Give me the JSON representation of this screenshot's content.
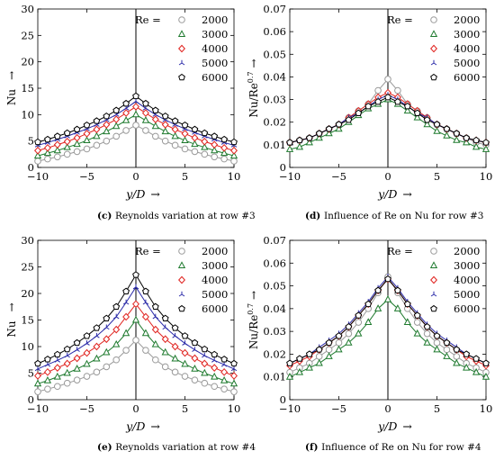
{
  "legend_header": "Re =",
  "series_styles": [
    {
      "name": "2000",
      "color": "#9a9a9a",
      "marker": "circle"
    },
    {
      "name": "3000",
      "color": "#1e7a2e",
      "marker": "triangle"
    },
    {
      "name": "4000",
      "color": "#e0231f",
      "marker": "diamond"
    },
    {
      "name": "5000",
      "color": "#2a2aa8",
      "marker": "star"
    },
    {
      "name": "6000",
      "color": "#000000",
      "marker": "pentagon"
    }
  ],
  "chart_data": [
    {
      "type": "line",
      "panel": "c",
      "caption_letter": "(c)",
      "caption": "Reynolds variation at row #3",
      "xlabel": "y/D",
      "ylabel": "Nu",
      "xlim": [
        -10,
        10
      ],
      "ylim": [
        0,
        30
      ],
      "xticks": [
        -10,
        -5,
        0,
        5,
        10
      ],
      "yticks": [
        0,
        5,
        10,
        15,
        20,
        25,
        30
      ],
      "legend_position": "top-right",
      "vline_x": 0,
      "peaks": [
        8,
        10,
        11.5,
        12.5,
        13.5
      ],
      "edges": [
        1.2,
        2.2,
        3.2,
        4.2,
        4.8
      ],
      "series": [
        {
          "name": "2000",
          "x": [
            -10,
            -9,
            -8,
            -7,
            -6,
            -5,
            -4,
            -3,
            -2,
            -1,
            0,
            1,
            2,
            3,
            4,
            5,
            6,
            7,
            8,
            9,
            10
          ],
          "y": [
            1.2,
            1.6,
            2.0,
            2.5,
            3.0,
            3.5,
            4.2,
            5.0,
            5.9,
            7.0,
            8.0,
            7.0,
            5.9,
            5.0,
            4.2,
            3.5,
            3.0,
            2.5,
            2.0,
            1.6,
            1.2
          ]
        },
        {
          "name": "3000",
          "x": [
            -10,
            -9,
            -8,
            -7,
            -6,
            -5,
            -4,
            -3,
            -2,
            -1,
            0,
            1,
            2,
            3,
            4,
            5,
            6,
            7,
            8,
            9,
            10
          ],
          "y": [
            2.2,
            2.7,
            3.2,
            3.8,
            4.4,
            5.1,
            5.9,
            6.8,
            7.8,
            8.9,
            10.0,
            8.9,
            7.8,
            6.8,
            5.9,
            5.1,
            4.4,
            3.8,
            3.2,
            2.7,
            2.2
          ]
        },
        {
          "name": "4000",
          "x": [
            -10,
            -9,
            -8,
            -7,
            -6,
            -5,
            -4,
            -3,
            -2,
            -1,
            0,
            1,
            2,
            3,
            4,
            5,
            6,
            7,
            8,
            9,
            10
          ],
          "y": [
            3.2,
            3.7,
            4.3,
            4.9,
            5.6,
            6.4,
            7.2,
            8.1,
            9.1,
            10.3,
            11.5,
            10.3,
            9.1,
            8.1,
            7.2,
            6.4,
            5.6,
            4.9,
            4.3,
            3.7,
            3.2
          ]
        },
        {
          "name": "5000",
          "x": [
            -10,
            -9,
            -8,
            -7,
            -6,
            -5,
            -4,
            -3,
            -2,
            -1,
            0,
            1,
            2,
            3,
            4,
            5,
            6,
            7,
            8,
            9,
            10
          ],
          "y": [
            4.2,
            4.7,
            5.3,
            5.9,
            6.6,
            7.3,
            8.1,
            9.0,
            10.0,
            11.2,
            12.5,
            11.2,
            10.0,
            9.0,
            8.1,
            7.3,
            6.6,
            5.9,
            5.3,
            4.7,
            4.2
          ]
        },
        {
          "name": "6000",
          "x": [
            -10,
            -9,
            -8,
            -7,
            -6,
            -5,
            -4,
            -3,
            -2,
            -1,
            0,
            1,
            2,
            3,
            4,
            5,
            6,
            7,
            8,
            9,
            10
          ],
          "y": [
            4.8,
            5.3,
            5.9,
            6.5,
            7.2,
            8.0,
            8.8,
            9.7,
            10.8,
            12.1,
            13.5,
            12.1,
            10.8,
            9.7,
            8.8,
            8.0,
            7.2,
            6.5,
            5.9,
            5.3,
            4.8
          ]
        }
      ]
    },
    {
      "type": "line",
      "panel": "d",
      "caption_letter": "(d)",
      "caption": "Influence of Re on Nu for row #3",
      "xlabel": "y/D",
      "ylabel": "Nu/Re",
      "ylabel_exponent": "0.7",
      "xlim": [
        -10,
        10
      ],
      "ylim": [
        0,
        0.07
      ],
      "xticks": [
        -10,
        -5,
        0,
        5,
        10
      ],
      "yticks": [
        0,
        0.01,
        0.02,
        0.03,
        0.04,
        0.05,
        0.06,
        0.07
      ],
      "legend_position": "top-right",
      "vline_x": 0,
      "series": [
        {
          "name": "2000",
          "x": [
            -10,
            -9,
            -8,
            -7,
            -6,
            -5,
            -4,
            -3,
            -2,
            -1,
            0,
            1,
            2,
            3,
            4,
            5,
            6,
            7,
            8,
            9,
            10
          ],
          "y": [
            0.011,
            0.012,
            0.013,
            0.015,
            0.017,
            0.019,
            0.022,
            0.025,
            0.028,
            0.034,
            0.039,
            0.034,
            0.028,
            0.025,
            0.022,
            0.019,
            0.017,
            0.015,
            0.013,
            0.011,
            0.01
          ]
        },
        {
          "name": "3000",
          "x": [
            -10,
            -9,
            -8,
            -7,
            -6,
            -5,
            -4,
            -3,
            -2,
            -1,
            0,
            1,
            2,
            3,
            4,
            5,
            6,
            7,
            8,
            9,
            10
          ],
          "y": [
            0.008,
            0.009,
            0.011,
            0.013,
            0.015,
            0.017,
            0.02,
            0.023,
            0.026,
            0.028,
            0.03,
            0.028,
            0.025,
            0.022,
            0.019,
            0.016,
            0.014,
            0.012,
            0.011,
            0.009,
            0.008
          ]
        },
        {
          "name": "4000",
          "x": [
            -10,
            -9,
            -8,
            -7,
            -6,
            -5,
            -4,
            -3,
            -2,
            -1,
            0,
            1,
            2,
            3,
            4,
            5,
            6,
            7,
            8,
            9,
            10
          ],
          "y": [
            0.011,
            0.012,
            0.013,
            0.015,
            0.017,
            0.019,
            0.022,
            0.025,
            0.028,
            0.031,
            0.033,
            0.031,
            0.028,
            0.025,
            0.022,
            0.019,
            0.017,
            0.015,
            0.013,
            0.012,
            0.011
          ]
        },
        {
          "name": "5000",
          "x": [
            -10,
            -9,
            -8,
            -7,
            -6,
            -5,
            -4,
            -3,
            -2,
            -1,
            0,
            1,
            2,
            3,
            4,
            5,
            6,
            7,
            8,
            9,
            10
          ],
          "y": [
            0.011,
            0.012,
            0.013,
            0.015,
            0.017,
            0.019,
            0.022,
            0.024,
            0.027,
            0.03,
            0.032,
            0.03,
            0.027,
            0.024,
            0.022,
            0.019,
            0.017,
            0.015,
            0.013,
            0.012,
            0.011
          ]
        },
        {
          "name": "6000",
          "x": [
            -10,
            -9,
            -8,
            -7,
            -6,
            -5,
            -4,
            -3,
            -2,
            -1,
            0,
            1,
            2,
            3,
            4,
            5,
            6,
            7,
            8,
            9,
            10
          ],
          "y": [
            0.011,
            0.012,
            0.013,
            0.015,
            0.017,
            0.019,
            0.021,
            0.024,
            0.027,
            0.029,
            0.031,
            0.029,
            0.027,
            0.024,
            0.021,
            0.019,
            0.017,
            0.015,
            0.013,
            0.012,
            0.011
          ]
        }
      ]
    },
    {
      "type": "line",
      "panel": "e",
      "caption_letter": "(e)",
      "caption": "Reynolds variation at row #4",
      "xlabel": "y/D",
      "ylabel": "Nu",
      "xlim": [
        -10,
        10
      ],
      "ylim": [
        0,
        30
      ],
      "xticks": [
        -10,
        -5,
        0,
        5,
        10
      ],
      "yticks": [
        0,
        5,
        10,
        15,
        20,
        25,
        30
      ],
      "legend_position": "top-right",
      "vline_x": 0,
      "series": [
        {
          "name": "2000",
          "x": [
            -10,
            -9,
            -8,
            -7,
            -6,
            -5,
            -4,
            -3,
            -2,
            -1,
            0,
            1,
            2,
            3,
            4,
            5,
            6,
            7,
            8,
            9,
            10
          ],
          "y": [
            1.5,
            2.0,
            2.5,
            3.1,
            3.7,
            4.4,
            5.2,
            6.2,
            7.5,
            9.3,
            11.2,
            9.3,
            7.5,
            6.2,
            5.2,
            4.4,
            3.7,
            3.1,
            2.5,
            2.0,
            1.5
          ]
        },
        {
          "name": "3000",
          "x": [
            -10,
            -9,
            -8,
            -7,
            -6,
            -5,
            -4,
            -3,
            -2,
            -1,
            0,
            1,
            2,
            3,
            4,
            5,
            6,
            7,
            8,
            9,
            10
          ],
          "y": [
            3.0,
            3.6,
            4.3,
            5.0,
            5.8,
            6.7,
            7.7,
            8.9,
            10.4,
            12.5,
            15.0,
            12.5,
            10.4,
            8.9,
            7.7,
            6.7,
            5.8,
            5.0,
            4.3,
            3.6,
            3.0
          ]
        },
        {
          "name": "4000",
          "x": [
            -10,
            -9,
            -8,
            -7,
            -6,
            -5,
            -4,
            -3,
            -2,
            -1,
            0,
            1,
            2,
            3,
            4,
            5,
            6,
            7,
            8,
            9,
            10
          ],
          "y": [
            4.5,
            5.2,
            6.0,
            6.8,
            7.8,
            8.8,
            10.0,
            11.4,
            13.2,
            15.6,
            18.0,
            15.6,
            13.2,
            11.4,
            10.0,
            8.8,
            7.8,
            6.8,
            6.0,
            5.2,
            4.5
          ]
        },
        {
          "name": "5000",
          "x": [
            -10,
            -9,
            -8,
            -7,
            -6,
            -5,
            -4,
            -3,
            -2,
            -1,
            0,
            1,
            2,
            3,
            4,
            5,
            6,
            7,
            8,
            9,
            10
          ],
          "y": [
            5.8,
            6.6,
            7.4,
            8.3,
            9.4,
            10.6,
            12.0,
            13.6,
            15.6,
            18.3,
            21.2,
            18.3,
            15.6,
            13.6,
            12.0,
            10.6,
            9.4,
            8.3,
            7.4,
            6.6,
            5.8
          ]
        },
        {
          "name": "6000",
          "x": [
            -10,
            -9,
            -8,
            -7,
            -6,
            -5,
            -4,
            -3,
            -2,
            -1,
            0,
            1,
            2,
            3,
            4,
            5,
            6,
            7,
            8,
            9,
            10
          ],
          "y": [
            6.8,
            7.6,
            8.5,
            9.5,
            10.7,
            12.0,
            13.5,
            15.3,
            17.5,
            20.4,
            23.5,
            20.4,
            17.5,
            15.3,
            13.5,
            12.0,
            10.7,
            9.5,
            8.5,
            7.6,
            6.8
          ]
        }
      ]
    },
    {
      "type": "line",
      "panel": "f",
      "caption_letter": "(f)",
      "caption": "Influence of Re on Nu for row #4",
      "xlabel": "y/D",
      "ylabel": "Nu/Re",
      "ylabel_exponent": "0.7",
      "xlim": [
        -10,
        10
      ],
      "ylim": [
        0,
        0.07
      ],
      "xticks": [
        -10,
        -5,
        0,
        5,
        10
      ],
      "yticks": [
        0,
        0.01,
        0.02,
        0.03,
        0.04,
        0.05,
        0.06,
        0.07
      ],
      "legend_position": "top-right",
      "vline_x": 0,
      "series": [
        {
          "name": "2000",
          "x": [
            -10,
            -9,
            -8,
            -7,
            -6,
            -5,
            -4,
            -3,
            -2,
            -1,
            0,
            1,
            2,
            3,
            4,
            5,
            6,
            7,
            8,
            9,
            10
          ],
          "y": [
            0.012,
            0.014,
            0.016,
            0.019,
            0.022,
            0.025,
            0.029,
            0.034,
            0.04,
            0.047,
            0.054,
            0.047,
            0.04,
            0.034,
            0.029,
            0.025,
            0.022,
            0.019,
            0.016,
            0.014,
            0.012
          ]
        },
        {
          "name": "3000",
          "x": [
            -10,
            -9,
            -8,
            -7,
            -6,
            -5,
            -4,
            -3,
            -2,
            -1,
            0,
            1,
            2,
            3,
            4,
            5,
            6,
            7,
            8,
            9,
            10
          ],
          "y": [
            0.01,
            0.012,
            0.014,
            0.016,
            0.019,
            0.022,
            0.025,
            0.029,
            0.034,
            0.04,
            0.044,
            0.04,
            0.034,
            0.029,
            0.025,
            0.022,
            0.019,
            0.016,
            0.014,
            0.012,
            0.01
          ]
        },
        {
          "name": "4000",
          "x": [
            -10,
            -9,
            -8,
            -7,
            -6,
            -5,
            -4,
            -3,
            -2,
            -1,
            0,
            1,
            2,
            3,
            4,
            5,
            6,
            7,
            8,
            9,
            10
          ],
          "y": [
            0.015,
            0.017,
            0.019,
            0.022,
            0.025,
            0.028,
            0.032,
            0.037,
            0.042,
            0.048,
            0.053,
            0.048,
            0.042,
            0.037,
            0.032,
            0.028,
            0.025,
            0.022,
            0.019,
            0.017,
            0.015
          ]
        },
        {
          "name": "5000",
          "x": [
            -10,
            -9,
            -8,
            -7,
            -6,
            -5,
            -4,
            -3,
            -2,
            -1,
            0,
            1,
            2,
            3,
            4,
            5,
            6,
            7,
            8,
            9,
            10
          ],
          "y": [
            0.016,
            0.018,
            0.02,
            0.023,
            0.026,
            0.029,
            0.033,
            0.038,
            0.043,
            0.049,
            0.054,
            0.049,
            0.043,
            0.038,
            0.033,
            0.029,
            0.026,
            0.023,
            0.02,
            0.018,
            0.016
          ]
        },
        {
          "name": "6000",
          "x": [
            -10,
            -9,
            -8,
            -7,
            -6,
            -5,
            -4,
            -3,
            -2,
            -1,
            0,
            1,
            2,
            3,
            4,
            5,
            6,
            7,
            8,
            9,
            10
          ],
          "y": [
            0.016,
            0.018,
            0.02,
            0.022,
            0.025,
            0.028,
            0.032,
            0.037,
            0.042,
            0.048,
            0.053,
            0.048,
            0.042,
            0.037,
            0.032,
            0.028,
            0.025,
            0.022,
            0.02,
            0.018,
            0.016
          ]
        }
      ]
    }
  ]
}
